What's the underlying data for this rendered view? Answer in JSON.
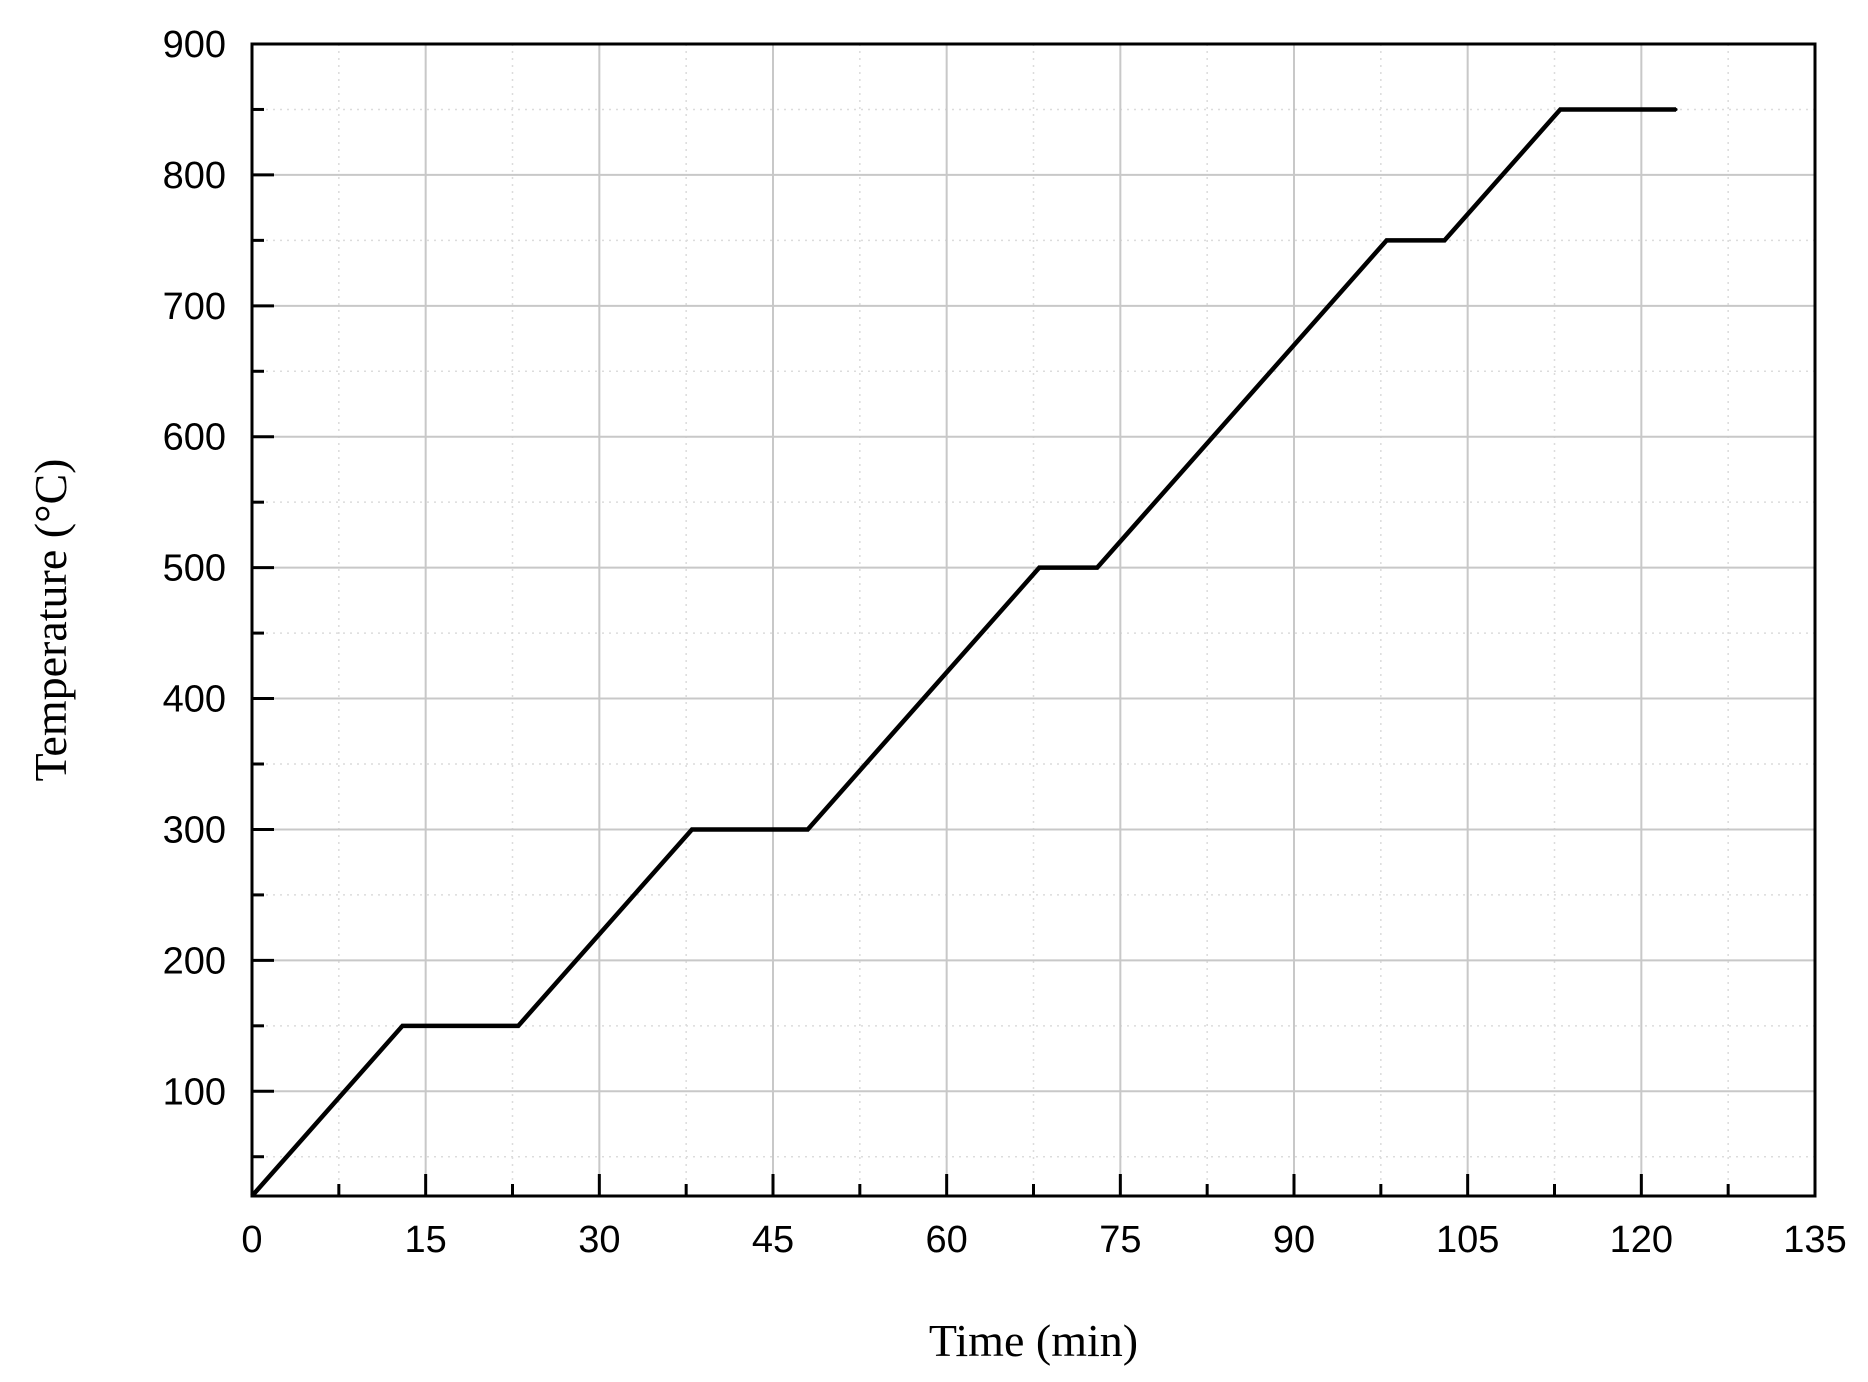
{
  "chart_data": {
    "type": "line",
    "title": "",
    "xlabel": "Time (min)",
    "ylabel": "Temperature (°C)",
    "xlim": [
      0,
      135
    ],
    "ylim": [
      20,
      900
    ],
    "x_ticks": [
      "0",
      "15",
      "30",
      "45",
      "60",
      "75",
      "90",
      "105",
      "120",
      "135"
    ],
    "y_ticks": [
      "100",
      "200",
      "300",
      "400",
      "500",
      "600",
      "700",
      "800",
      "900"
    ],
    "grid": true,
    "legend": "none",
    "series": [
      {
        "color": "#000000",
        "points": [
          {
            "x": 0,
            "y": 20
          },
          {
            "x": 13,
            "y": 150
          },
          {
            "x": 23,
            "y": 150
          },
          {
            "x": 38,
            "y": 300
          },
          {
            "x": 48,
            "y": 300
          },
          {
            "x": 68,
            "y": 500
          },
          {
            "x": 73,
            "y": 500
          },
          {
            "x": 98,
            "y": 750
          },
          {
            "x": 103,
            "y": 750
          },
          {
            "x": 113,
            "y": 850
          },
          {
            "x": 123,
            "y": 850
          }
        ]
      }
    ]
  }
}
